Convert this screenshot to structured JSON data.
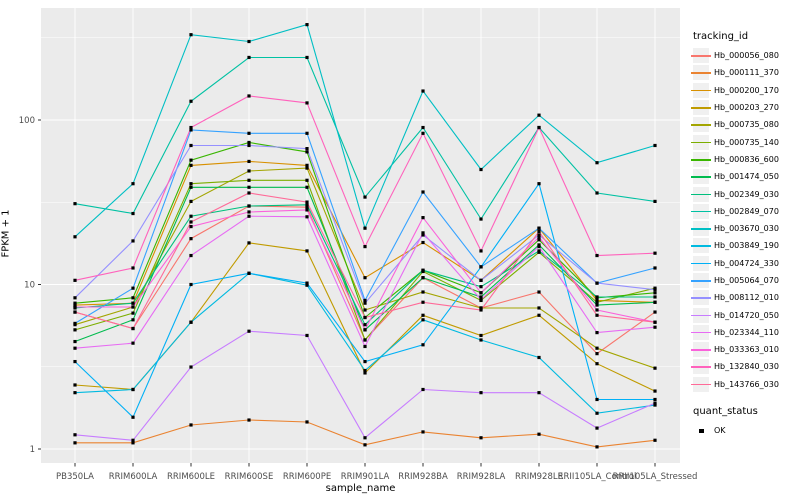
{
  "panel": {
    "background": "#EBEBEB",
    "gridline_color": "#FFFFFF",
    "tick_color": "#333333",
    "tick_label_color": "#4D4D4D"
  },
  "x_axis": {
    "label": "sample_name"
  },
  "y_axis": {
    "label": "FPKM + 1",
    "tick_labels": [
      "100",
      "10",
      "1"
    ]
  },
  "legend": {
    "tracking_title": "tracking_id",
    "quant_title": "quant_status",
    "quant_items": [
      {
        "label": "OK",
        "marker": "black-square"
      }
    ]
  },
  "chart_data": {
    "type": "line",
    "title": "",
    "xlabel": "sample_name",
    "ylabel": "FPKM + 1",
    "yscale": "log10",
    "yticks": [
      1,
      10,
      100
    ],
    "yminor": [
      3.162,
      31.62,
      316.2
    ],
    "ylim": [
      0.82,
      480
    ],
    "grid": true,
    "legend_position": "right",
    "point_marker": {
      "shape": "square",
      "color": "#000000",
      "legend_group": "quant_status",
      "label": "OK"
    },
    "categories": [
      "PB350LA",
      "RRIM600LA",
      "RRIM600LE",
      "RRIM600SE",
      "RRIM600PE",
      "RRIM901LA",
      "RRIM928BA",
      "RRIM928LA",
      "RRIM928LE",
      "RRII105LA_Control",
      "RRII105LA_Stressed"
    ],
    "series": [
      {
        "name": "Hb_000056_080",
        "color": "#F8766D",
        "values": [
          6.8,
          5.4,
          19,
          30,
          29.5,
          4.6,
          11,
          7.2,
          9.0,
          3.8,
          6.8
        ]
      },
      {
        "name": "Hb_000111_370",
        "color": "#EA8331",
        "values": [
          1.09,
          1.09,
          1.4,
          1.5,
          1.46,
          1.06,
          1.27,
          1.17,
          1.23,
          1.03,
          1.13
        ]
      },
      {
        "name": "Hb_000200_170",
        "color": "#D89000",
        "values": [
          7.5,
          7.7,
          53,
          56,
          53,
          11,
          18,
          10.6,
          22,
          8.0,
          7.8
        ]
      },
      {
        "name": "Hb_000203_270",
        "color": "#C09B00",
        "values": [
          2.45,
          2.3,
          5.9,
          17.9,
          16,
          2.9,
          6.5,
          4.9,
          6.5,
          3.3,
          2.25
        ]
      },
      {
        "name": "Hb_000735_080",
        "color": "#A3A500",
        "values": [
          5.7,
          7.3,
          32,
          49,
          51,
          7.0,
          9.0,
          7.2,
          7.2,
          4.1,
          3.1
        ]
      },
      {
        "name": "Hb_000735_140",
        "color": "#7CAE00",
        "values": [
          5.3,
          6.7,
          41,
          43,
          43,
          4.6,
          12,
          8.0,
          15.7,
          7.8,
          9.5
        ]
      },
      {
        "name": "Hb_000836_600",
        "color": "#39B600",
        "values": [
          7.7,
          8.3,
          57,
          73,
          64,
          6.3,
          12.2,
          8.9,
          18.7,
          8.3,
          8.9
        ]
      },
      {
        "name": "Hb_001474_050",
        "color": "#00BB4E",
        "values": [
          4.5,
          6.1,
          39,
          39,
          39,
          5.3,
          11,
          8.4,
          17.4,
          7.5,
          7.8
        ]
      },
      {
        "name": "Hb_002349_030",
        "color": "#00BF7D",
        "values": [
          7.2,
          7.7,
          26,
          30,
          30.5,
          5.7,
          12.2,
          9.7,
          16,
          8.4,
          8.4
        ]
      },
      {
        "name": "Hb_002849_070",
        "color": "#00C1A3",
        "values": [
          31,
          27,
          130,
          240,
          240,
          34,
          90,
          25,
          90,
          36,
          32
        ]
      },
      {
        "name": "Hb_003670_030",
        "color": "#00BFC4",
        "values": [
          19.5,
          41,
          330,
          300,
          380,
          22,
          150,
          50,
          107,
          55,
          70
        ]
      },
      {
        "name": "Hb_003849_190",
        "color": "#00BAE0",
        "values": [
          2.2,
          2.3,
          5.9,
          11.7,
          9.9,
          3.0,
          6.1,
          4.6,
          3.6,
          1.65,
          1.85
        ]
      },
      {
        "name": "Hb_004724_330",
        "color": "#00B0F6",
        "values": [
          3.4,
          1.56,
          10,
          11.7,
          10.2,
          3.4,
          4.3,
          12.8,
          41,
          2.0,
          2.0
        ]
      },
      {
        "name": "Hb_005064_070",
        "color": "#35A2FF",
        "values": [
          5.8,
          9.5,
          87,
          83,
          83,
          8.0,
          36.5,
          12.8,
          22,
          10.2,
          12.6
        ]
      },
      {
        "name": "Hb_008112_010",
        "color": "#9590FF",
        "values": [
          8.3,
          18.4,
          70,
          70,
          67,
          7.7,
          20,
          10.6,
          20,
          10.2,
          9.3
        ]
      },
      {
        "name": "Hb_014720_050",
        "color": "#C77CFF",
        "values": [
          1.22,
          1.13,
          3.15,
          5.2,
          4.9,
          1.17,
          2.3,
          2.2,
          2.2,
          1.34,
          1.9
        ]
      },
      {
        "name": "Hb_023344_110",
        "color": "#E76BF3",
        "values": [
          4.1,
          4.4,
          15,
          26,
          25.8,
          4.2,
          20.6,
          8.1,
          17,
          5.1,
          5.5
        ]
      },
      {
        "name": "Hb_033363_010",
        "color": "#FA62DB",
        "values": [
          7.3,
          7.3,
          22.5,
          27.6,
          28.4,
          5.3,
          25.5,
          8.9,
          19.4,
          7.0,
          5.9
        ]
      },
      {
        "name": "Hb_132840_030",
        "color": "#FF62BC",
        "values": [
          10.6,
          12.6,
          90,
          140,
          127,
          17,
          83,
          16,
          90,
          15,
          15.5
        ]
      },
      {
        "name": "Hb_143766_030",
        "color": "#FF6A98",
        "values": [
          6.8,
          5.4,
          24,
          36,
          31.7,
          6.3,
          7.8,
          7.0,
          21,
          6.5,
          5.9
        ]
      }
    ]
  }
}
